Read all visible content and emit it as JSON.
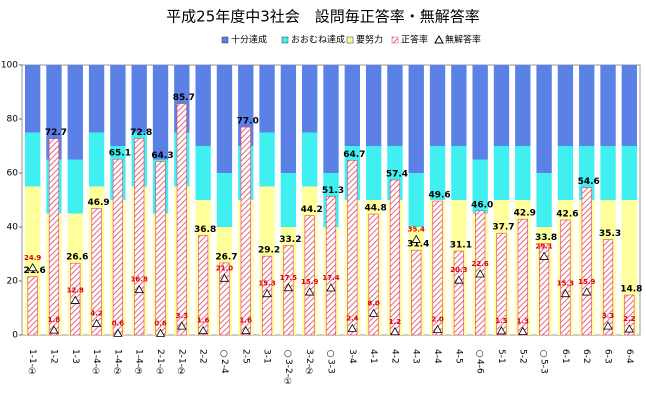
{
  "chart_data": {
    "type": "stacked-bar",
    "title": "平成25年度中3社会　設問毎正答率・無解答率",
    "categories": [
      "1-1-①",
      "1-2",
      "1-3",
      "1-4-①",
      "1-4-②",
      "1-4-③",
      "2-1-①",
      "2-1-②",
      "2-2",
      "○2-4",
      "2-5",
      "3-1",
      "○3-2-①",
      "3-2-②",
      "○3-3",
      "3-4",
      "4-1",
      "4-2",
      "4-3",
      "4-4",
      "4-5",
      "○4-6",
      "5-1",
      "5-2",
      "○5-3",
      "6-1",
      "6-2",
      "6-3",
      "6-4"
    ],
    "ylim": [
      0,
      100
    ],
    "yticks": [
      0,
      20,
      40,
      60,
      80,
      100
    ],
    "legend": "top",
    "series": [
      {
        "name": "十分達成",
        "color": "#5b80e6",
        "stack": true,
        "values": [
          25,
          35,
          35,
          25,
          30,
          25,
          35,
          25,
          30,
          40,
          30,
          25,
          40,
          25,
          40,
          30,
          30,
          30,
          40,
          30,
          30,
          35,
          30,
          30,
          40,
          30,
          30,
          30,
          30
        ]
      },
      {
        "name": "おおむね達成",
        "color": "#40f0f0",
        "stack": true,
        "values": [
          20,
          20,
          20,
          20,
          20,
          20,
          20,
          20,
          20,
          20,
          20,
          20,
          20,
          20,
          20,
          20,
          20,
          20,
          20,
          20,
          20,
          20,
          20,
          20,
          20,
          20,
          20,
          20,
          20
        ]
      },
      {
        "name": "要努力",
        "color": "#ffff9c",
        "stack": true,
        "values": [
          55,
          45,
          45,
          55,
          50,
          55,
          45,
          55,
          50,
          40,
          50,
          55,
          40,
          55,
          40,
          50,
          50,
          50,
          40,
          50,
          50,
          45,
          50,
          50,
          40,
          50,
          50,
          50,
          50
        ]
      },
      {
        "name": "正答率",
        "color": "#e04060",
        "values": [
          21.6,
          72.7,
          26.6,
          46.9,
          65.1,
          72.8,
          64.3,
          85.7,
          36.8,
          26.7,
          77.0,
          29.2,
          33.2,
          44.2,
          51.3,
          64.7,
          44.8,
          57.4,
          31.4,
          49.6,
          31.1,
          46.0,
          37.7,
          42.9,
          33.8,
          42.6,
          54.6,
          35.3,
          14.8
        ],
        "value_labels": [
          "21.6",
          "72.7",
          "26.6",
          "46.9",
          "65.1",
          "72.8",
          "64.3",
          "85.7",
          "36.8",
          "26.7",
          "77.0",
          "29.2",
          "33.2",
          "44.2",
          "51.3",
          "64.7",
          "44.8",
          "57.4",
          "31.4",
          "49.6",
          "31.1",
          "46.0",
          "37.7",
          "42.9",
          "33.8",
          "42.6",
          "54.6",
          "35.3",
          "14.8"
        ]
      },
      {
        "name": "無解答率",
        "color": "#e00000",
        "values": [
          24.9,
          1.8,
          12.8,
          4.2,
          0.6,
          16.8,
          0.6,
          3.3,
          1.6,
          21.0,
          1.6,
          15.3,
          17.5,
          15.9,
          17.4,
          2.4,
          8.0,
          1.2,
          35.4,
          2.0,
          20.3,
          22.6,
          1.5,
          1.3,
          29.1,
          15.3,
          15.9,
          3.3,
          2.2
        ],
        "value_labels": [
          "24.9",
          "1.8",
          "12.8",
          "4.2",
          "0.6",
          "16.8",
          "0.6",
          "3.3",
          "1.6",
          "21.0",
          "1.6",
          "15.3",
          "17.5",
          "15.9",
          "17.4",
          "2.4",
          "8.0",
          "1.2",
          "35.4",
          "2.0",
          "20.3",
          "22.6",
          "1.5",
          "1.3",
          "29.1",
          "15.3",
          "15.9",
          "3.3",
          "2.2"
        ]
      }
    ]
  }
}
